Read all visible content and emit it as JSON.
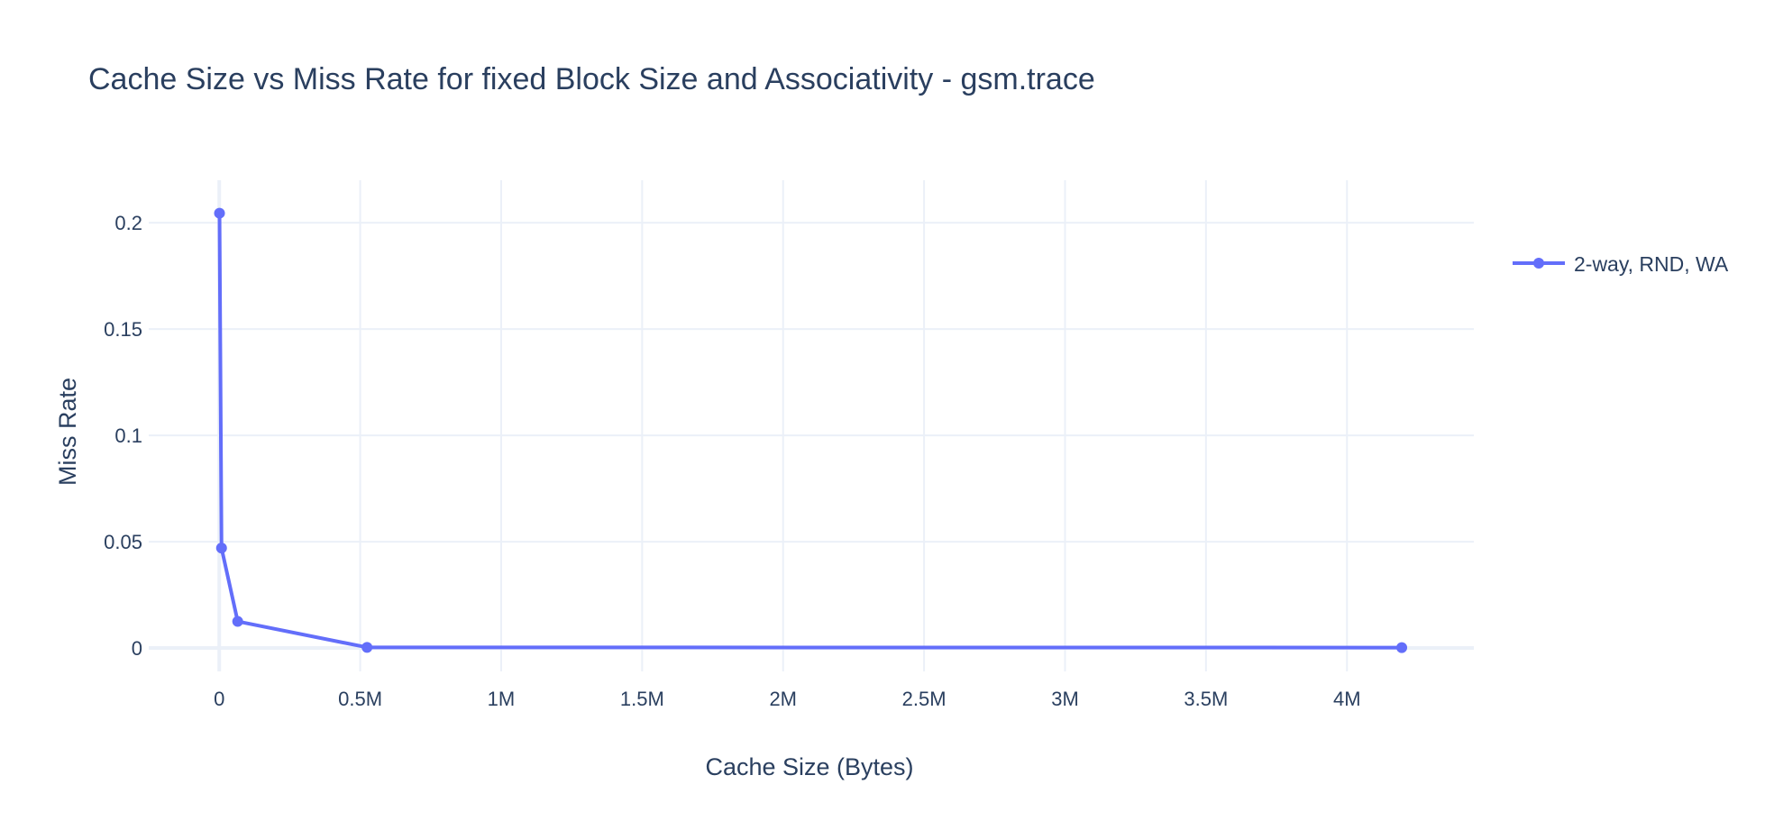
{
  "chart_data": {
    "type": "line",
    "title": "Cache Size vs Miss Rate for fixed Block Size and Associativity - gsm.trace",
    "xlabel": "Cache Size (Bytes)",
    "ylabel": "Miss Rate",
    "xlim": [
      -250000,
      4450000
    ],
    "ylim": [
      -0.011,
      0.22
    ],
    "x_ticks": [
      0,
      500000,
      1000000,
      1500000,
      2000000,
      2500000,
      3000000,
      3500000,
      4000000
    ],
    "x_tick_labels": [
      "0",
      "0.5M",
      "1M",
      "1.5M",
      "2M",
      "2.5M",
      "3M",
      "3.5M",
      "4M"
    ],
    "y_ticks": [
      0,
      0.05,
      0.1,
      0.15,
      0.2
    ],
    "y_tick_labels": [
      "0",
      "0.05",
      "0.1",
      "0.15",
      "0.2"
    ],
    "grid": true,
    "legend_position": "top-right",
    "series": [
      {
        "name": "2-way, RND, WA",
        "color": "#636efa",
        "x": [
          1024,
          8192,
          65536,
          524288,
          4194304
        ],
        "y": [
          0.2045,
          0.047,
          0.0125,
          0.0003,
          0.0002
        ]
      }
    ]
  }
}
